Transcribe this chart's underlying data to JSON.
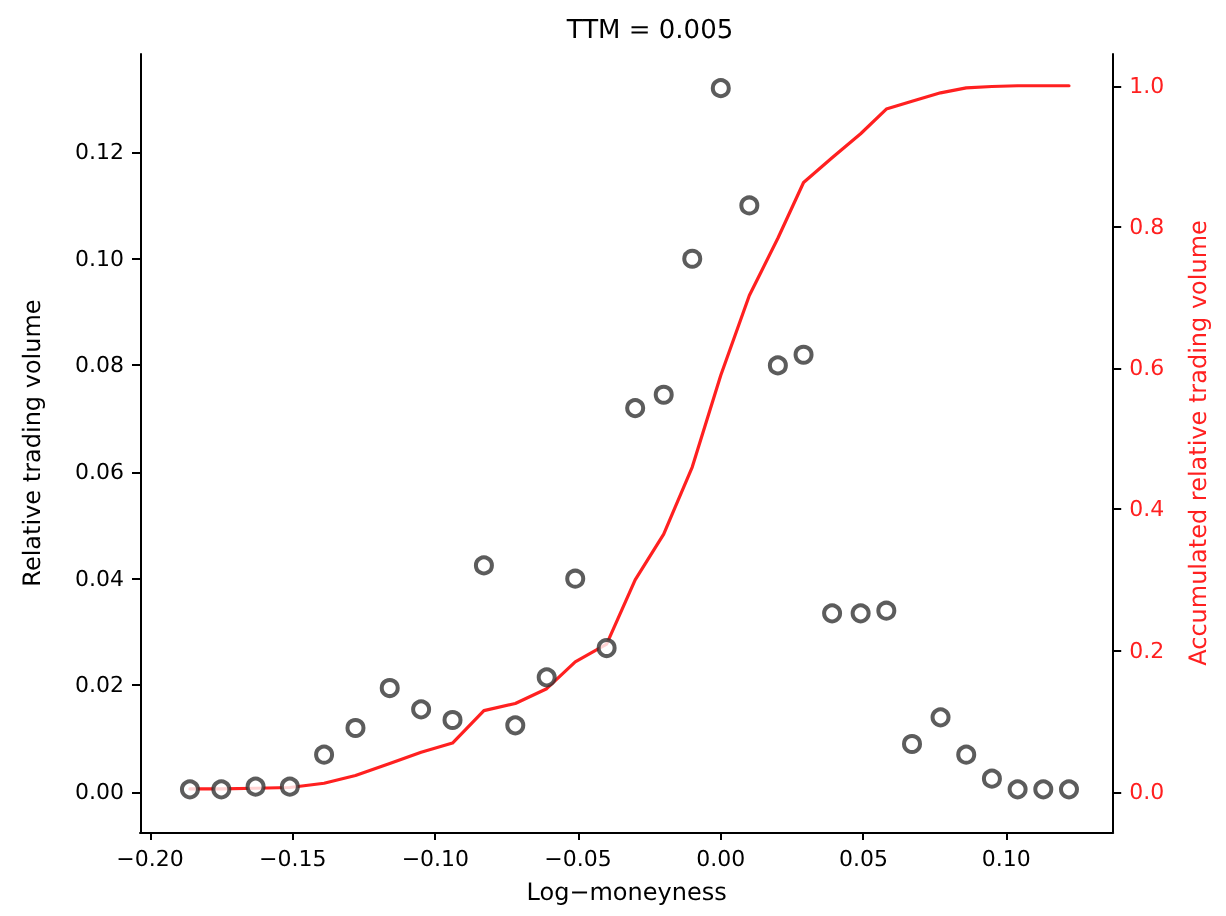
{
  "chart_data": {
    "type": "scatter",
    "title": "TTM = 0.005",
    "xlabel": "Log−moneyness",
    "ylabel": "Relative trading volume",
    "y2label": "Accumulated relative trading volume",
    "x": [
      -0.186,
      -0.175,
      -0.163,
      -0.151,
      -0.139,
      -0.128,
      -0.116,
      -0.105,
      -0.094,
      -0.083,
      -0.072,
      -0.061,
      -0.051,
      -0.04,
      -0.03,
      -0.02,
      -0.01,
      0.0,
      0.01,
      0.02,
      0.029,
      0.039,
      0.049,
      0.058,
      0.067,
      0.077,
      0.086,
      0.095,
      0.104,
      0.113,
      0.122
    ],
    "series": [
      {
        "type": "scatter",
        "color": "#333333",
        "marker": "circle",
        "values": [
          0.0005,
          0.0005,
          0.001,
          0.001,
          0.007,
          0.012,
          0.0195,
          0.0155,
          0.0135,
          0.0425,
          0.0125,
          0.0215,
          0.04,
          0.027,
          0.072,
          0.0745,
          0.1,
          0.132,
          0.11,
          0.08,
          0.082,
          0.0335,
          0.0335,
          0.034,
          0.009,
          0.014,
          0.007,
          0.0025,
          0.0005,
          0.0005,
          0.0005
        ]
      },
      {
        "type": "line",
        "axis": "y2",
        "color": "#ff2020",
        "marker": "none",
        "line_style": "solid",
        "values": [
          0.004,
          0.004,
          0.005,
          0.006,
          0.012,
          0.023,
          0.04,
          0.056,
          0.069,
          0.115,
          0.125,
          0.146,
          0.184,
          0.209,
          0.3,
          0.365,
          0.46,
          0.59,
          0.703,
          0.784,
          0.863,
          0.898,
          0.932,
          0.967,
          0.978,
          0.99,
          0.997,
          0.999,
          1.0,
          1.0,
          1.0
        ]
      }
    ],
    "xlim": [
      -0.2035,
      0.1375
    ],
    "xticks": [
      {
        "value": -0.2,
        "label": "−0.20"
      },
      {
        "value": -0.15,
        "label": "−0.15"
      },
      {
        "value": -0.1,
        "label": "−0.10"
      },
      {
        "value": -0.05,
        "label": "−0.05"
      },
      {
        "value": 0,
        "label": "0.00"
      },
      {
        "value": 0.05,
        "label": "0.05"
      },
      {
        "value": 0.1,
        "label": "0.10"
      }
    ],
    "ylim": [
      -0.0075,
      0.1384
    ],
    "yticks": [
      {
        "value": 0,
        "label": "0.00"
      },
      0.02,
      0.04,
      0.06,
      0.08,
      {
        "value": 0.1,
        "label": "0.10"
      },
      0.12
    ],
    "y2lim": [
      -0.057,
      1.045
    ],
    "y2ticks": [
      {
        "value": 0,
        "label": "0.0"
      },
      0.2,
      0.4,
      0.6,
      0.8,
      {
        "value": 1,
        "label": "1.0"
      }
    ],
    "grid": false
  }
}
